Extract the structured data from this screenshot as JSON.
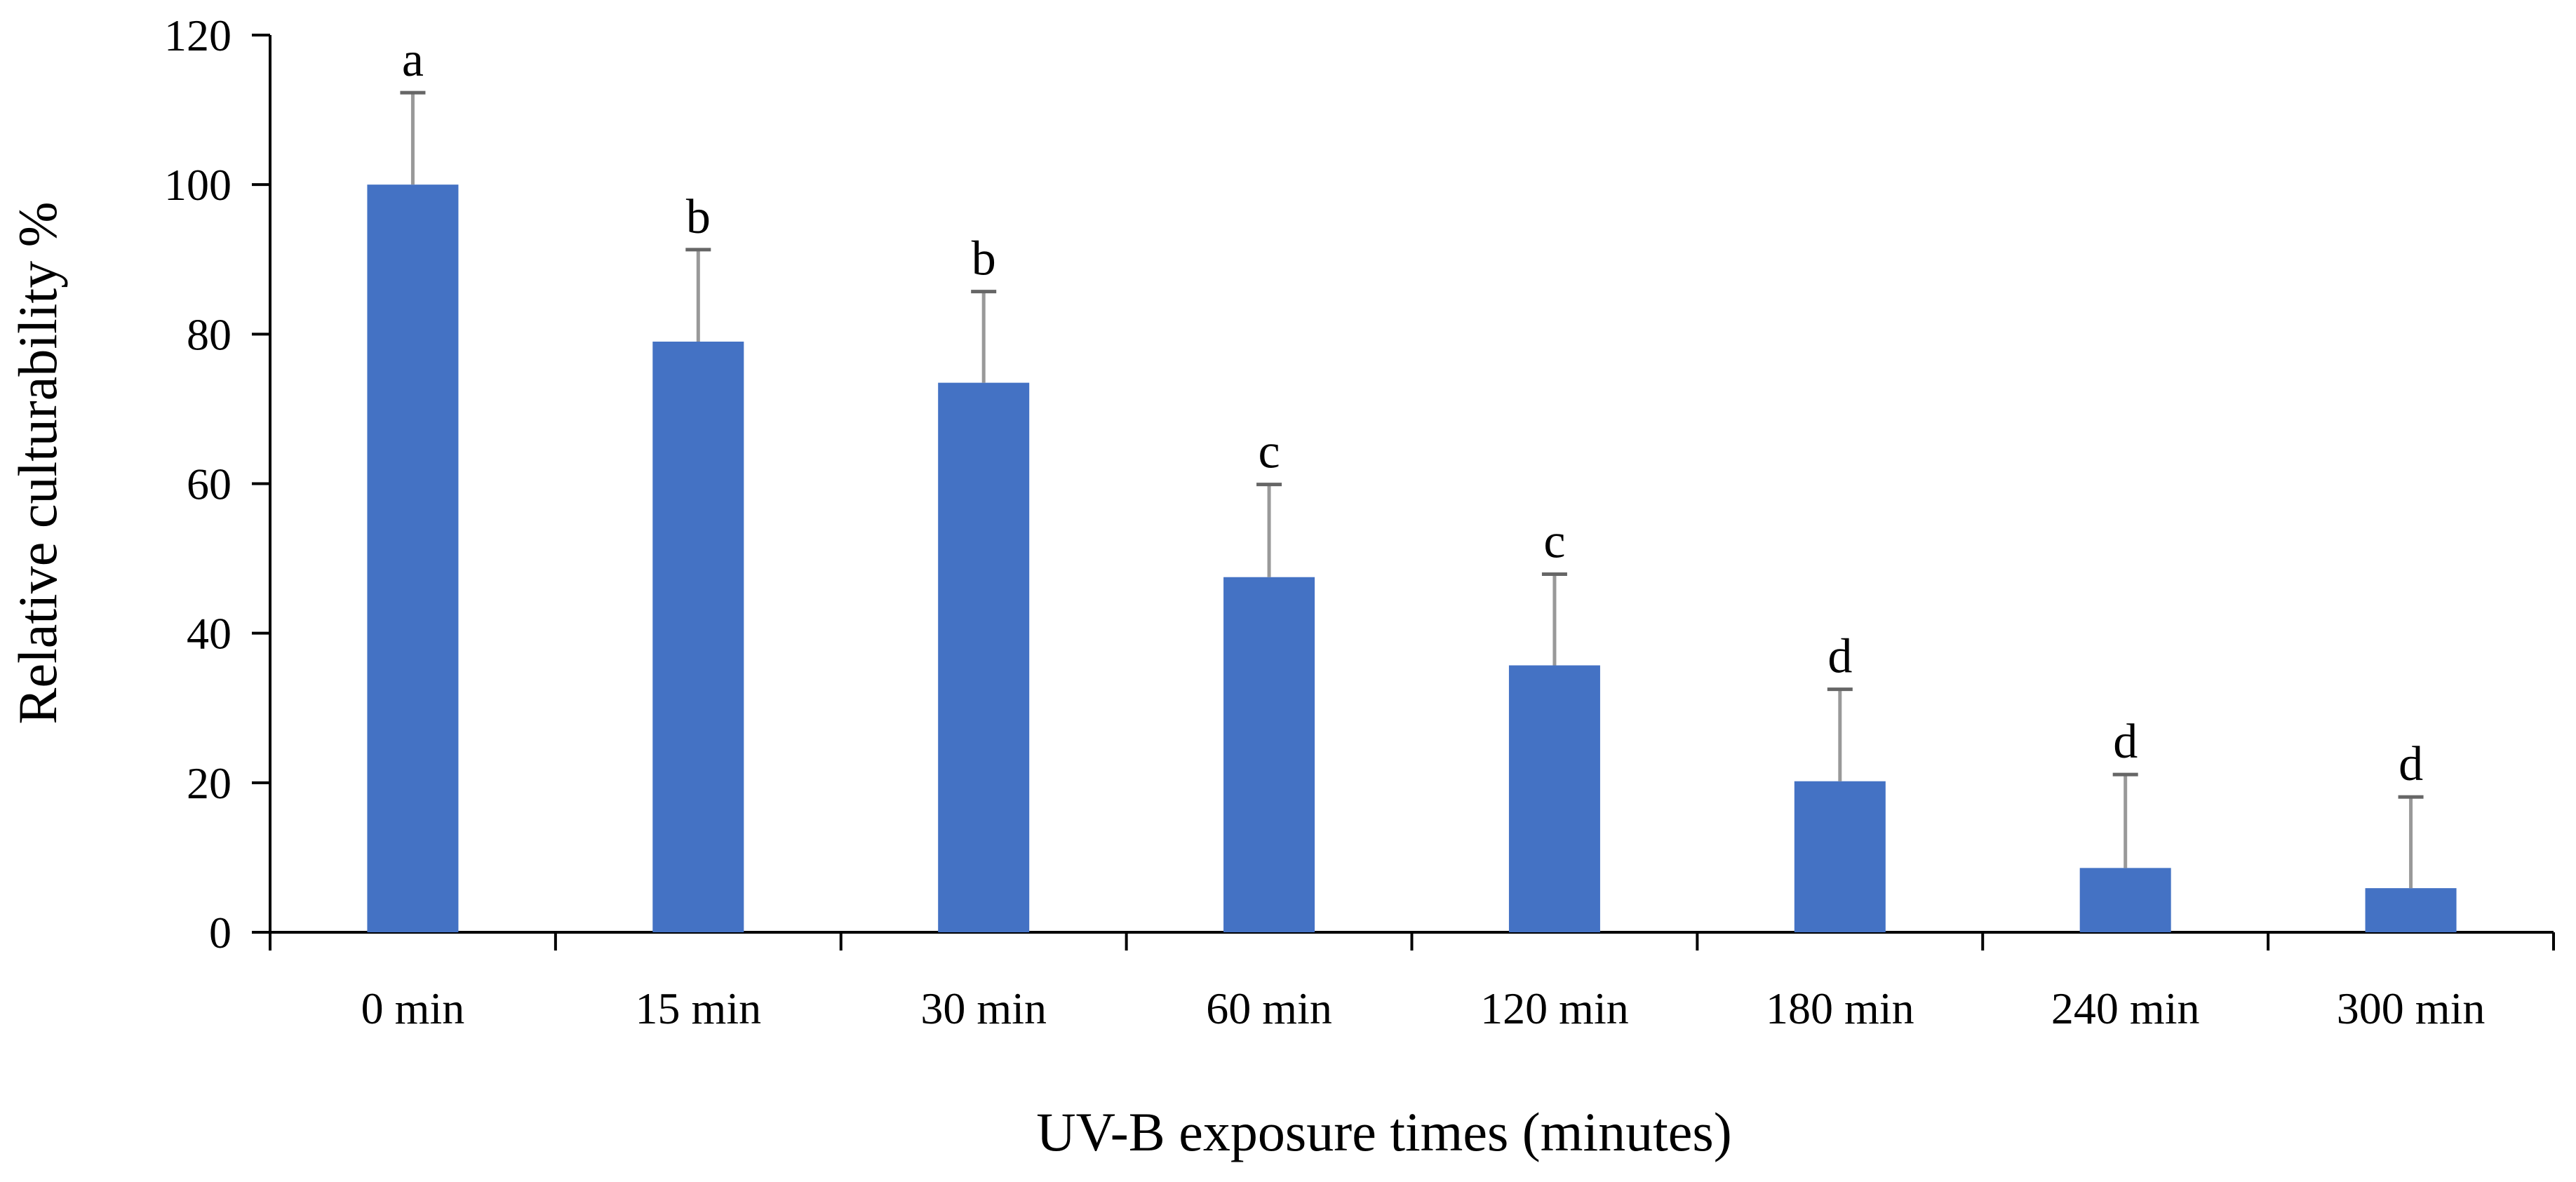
{
  "chart_data": {
    "type": "bar",
    "title": "",
    "xlabel": "UV-B exposure times (minutes)",
    "ylabel": "Relative culturability %",
    "ylim": [
      0,
      120
    ],
    "yticks": [
      "0",
      "20",
      "40",
      "60",
      "80",
      "100",
      "120"
    ],
    "categories": [
      "0 min",
      "15 min",
      "30 min",
      "60 min",
      "120 min",
      "180 min",
      "240 min",
      "300 min"
    ],
    "series": [
      {
        "name": "Relative culturability",
        "values": [
          100,
          79,
          73.5,
          47.5,
          35.7,
          20.2,
          8.6,
          5.9
        ],
        "error_plus": [
          12.3,
          12.3,
          12.2,
          12.4,
          12.2,
          12.3,
          12.5,
          12.2
        ],
        "color": "#4472C4"
      }
    ],
    "significance_letters": [
      "a",
      "b",
      "b",
      "c",
      "c",
      "d",
      "d",
      "d"
    ],
    "error_bar_color": "#999999",
    "axis_color": "#000000",
    "grid": false,
    "legend": "none"
  }
}
